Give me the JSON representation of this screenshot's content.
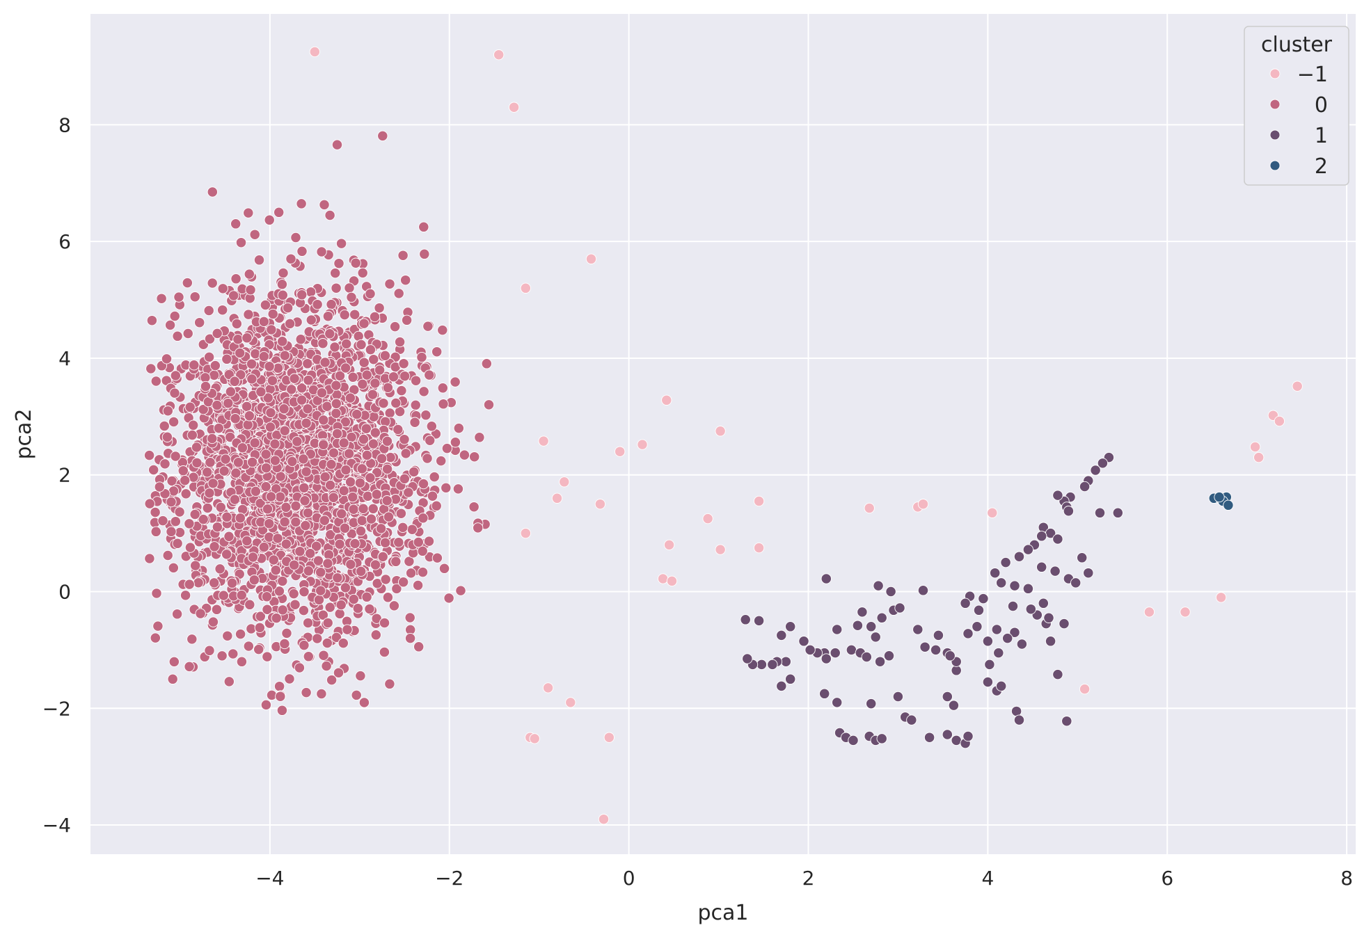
{
  "chart_data": {
    "type": "scatter",
    "title": "",
    "xlabel": "pca1",
    "ylabel": "pca2",
    "xlim": [
      -6.0,
      8.1
    ],
    "ylim": [
      -4.5,
      9.9
    ],
    "xticks": [
      -4,
      -2,
      0,
      2,
      4,
      6,
      8
    ],
    "xtick_labels": [
      "−4",
      "−2",
      "0",
      "2",
      "4",
      "6",
      "8"
    ],
    "yticks": [
      -4,
      -2,
      0,
      2,
      4,
      6,
      8
    ],
    "ytick_labels": [
      "−4",
      "−2",
      "0",
      "2",
      "4",
      "6",
      "8"
    ],
    "grid": true,
    "background": "#eaeaf2",
    "legend": {
      "title": "cluster",
      "placement": "top-right",
      "entries": [
        {
          "label": "−1",
          "color": "#f4b7c1"
        },
        {
          "label": "0",
          "color": "#c06680"
        },
        {
          "label": "1",
          "color": "#6a4e6f"
        },
        {
          "label": "2",
          "color": "#315b80"
        }
      ]
    },
    "series": [
      {
        "name": "−1",
        "color": "#f4b7c1",
        "points": [
          [
            -3.5,
            9.25
          ],
          [
            -1.45,
            9.2
          ],
          [
            -1.28,
            8.3
          ],
          [
            -0.42,
            5.7
          ],
          [
            -1.15,
            5.2
          ],
          [
            0.42,
            3.28
          ],
          [
            1.02,
            2.75
          ],
          [
            0.15,
            2.52
          ],
          [
            -0.1,
            2.4
          ],
          [
            -0.95,
            2.58
          ],
          [
            -0.72,
            1.88
          ],
          [
            -0.8,
            1.6
          ],
          [
            -0.32,
            1.5
          ],
          [
            0.88,
            1.25
          ],
          [
            1.45,
            1.55
          ],
          [
            2.68,
            1.43
          ],
          [
            3.22,
            1.45
          ],
          [
            3.28,
            1.5
          ],
          [
            4.05,
            1.35
          ],
          [
            0.45,
            0.8
          ],
          [
            1.02,
            0.72
          ],
          [
            1.45,
            0.75
          ],
          [
            -1.15,
            1.0
          ],
          [
            0.38,
            0.22
          ],
          [
            0.48,
            0.18
          ],
          [
            -1.1,
            -2.5
          ],
          [
            -1.05,
            -2.52
          ],
          [
            -0.9,
            -1.65
          ],
          [
            -0.65,
            -1.9
          ],
          [
            -0.22,
            -2.5
          ],
          [
            -0.28,
            -3.9
          ],
          [
            5.8,
            -0.35
          ],
          [
            6.2,
            -0.35
          ],
          [
            6.6,
            -0.1
          ],
          [
            5.08,
            -1.67
          ],
          [
            7.45,
            3.52
          ],
          [
            7.18,
            3.02
          ],
          [
            7.25,
            2.92
          ],
          [
            6.98,
            2.48
          ],
          [
            7.02,
            2.3
          ]
        ]
      },
      {
        "name": "0",
        "color": "#c06680",
        "points": []
      },
      {
        "name": "1",
        "color": "#6a4e6f",
        "points": [
          [
            5.35,
            2.3
          ],
          [
            5.28,
            2.2
          ],
          [
            5.2,
            2.08
          ],
          [
            5.12,
            1.9
          ],
          [
            5.08,
            1.8
          ],
          [
            4.92,
            1.62
          ],
          [
            4.85,
            1.55
          ],
          [
            4.78,
            1.65
          ],
          [
            4.88,
            1.45
          ],
          [
            4.9,
            1.38
          ],
          [
            5.25,
            1.35
          ],
          [
            5.45,
            1.35
          ],
          [
            4.62,
            1.1
          ],
          [
            4.7,
            1.0
          ],
          [
            4.78,
            0.9
          ],
          [
            4.6,
            0.95
          ],
          [
            4.52,
            0.8
          ],
          [
            4.45,
            0.72
          ],
          [
            4.35,
            0.6
          ],
          [
            4.2,
            0.5
          ],
          [
            4.08,
            0.32
          ],
          [
            4.15,
            0.15
          ],
          [
            4.3,
            0.1
          ],
          [
            4.45,
            0.05
          ],
          [
            4.6,
            0.42
          ],
          [
            4.75,
            0.35
          ],
          [
            4.9,
            0.22
          ],
          [
            5.05,
            0.58
          ],
          [
            5.12,
            0.32
          ],
          [
            4.98,
            0.15
          ],
          [
            4.62,
            -0.2
          ],
          [
            4.55,
            -0.4
          ],
          [
            4.65,
            -0.55
          ],
          [
            4.85,
            -0.55
          ],
          [
            4.3,
            -0.7
          ],
          [
            4.22,
            -0.8
          ],
          [
            4.1,
            -0.65
          ],
          [
            4.0,
            -0.85
          ],
          [
            3.88,
            -0.6
          ],
          [
            3.78,
            -0.72
          ],
          [
            3.95,
            -0.12
          ],
          [
            3.9,
            -0.32
          ],
          [
            4.12,
            -1.05
          ],
          [
            4.02,
            -1.25
          ],
          [
            3.65,
            -1.35
          ],
          [
            4.0,
            -1.55
          ],
          [
            4.1,
            -1.7
          ],
          [
            4.15,
            -1.62
          ],
          [
            3.55,
            -1.8
          ],
          [
            3.62,
            -1.95
          ],
          [
            3.42,
            -1.0
          ],
          [
            3.55,
            -1.05
          ],
          [
            3.65,
            -1.2
          ],
          [
            3.3,
            -0.95
          ],
          [
            3.22,
            -0.65
          ],
          [
            3.08,
            -2.15
          ],
          [
            3.15,
            -2.2
          ],
          [
            3.35,
            -2.5
          ],
          [
            3.55,
            -2.45
          ],
          [
            3.65,
            -2.55
          ],
          [
            3.75,
            -2.6
          ],
          [
            3.78,
            -2.48
          ],
          [
            4.32,
            -2.05
          ],
          [
            4.35,
            -2.2
          ],
          [
            4.78,
            -1.42
          ],
          [
            4.88,
            -2.22
          ],
          [
            4.7,
            -0.85
          ],
          [
            3.28,
            0.02
          ],
          [
            2.92,
            0.0
          ],
          [
            2.78,
            0.1
          ],
          [
            2.6,
            -0.35
          ],
          [
            2.82,
            -0.45
          ],
          [
            2.95,
            -0.32
          ],
          [
            3.02,
            -0.28
          ],
          [
            2.7,
            -0.6
          ],
          [
            2.75,
            -0.78
          ],
          [
            2.55,
            -0.58
          ],
          [
            2.48,
            -1.0
          ],
          [
            2.58,
            -1.05
          ],
          [
            2.65,
            -1.12
          ],
          [
            2.8,
            -1.2
          ],
          [
            2.9,
            -1.1
          ],
          [
            2.32,
            -0.65
          ],
          [
            2.18,
            -1.05
          ],
          [
            2.1,
            -1.05
          ],
          [
            2.02,
            -1.0
          ],
          [
            2.2,
            -1.15
          ],
          [
            2.3,
            -1.05
          ],
          [
            1.95,
            -0.85
          ],
          [
            1.8,
            -0.6
          ],
          [
            1.75,
            -1.2
          ],
          [
            1.7,
            -0.75
          ],
          [
            1.65,
            -1.2
          ],
          [
            1.6,
            -1.25
          ],
          [
            1.48,
            -1.25
          ],
          [
            1.38,
            -1.25
          ],
          [
            1.32,
            -1.15
          ],
          [
            1.3,
            -0.48
          ],
          [
            1.45,
            -0.5
          ],
          [
            1.7,
            -1.62
          ],
          [
            1.8,
            -1.5
          ],
          [
            2.18,
            -1.75
          ],
          [
            2.32,
            -1.9
          ],
          [
            2.35,
            -2.42
          ],
          [
            2.42,
            -2.5
          ],
          [
            2.5,
            -2.55
          ],
          [
            2.68,
            -2.48
          ],
          [
            2.75,
            -2.55
          ],
          [
            2.82,
            -2.52
          ],
          [
            3.0,
            -1.8
          ],
          [
            2.7,
            -1.92
          ],
          [
            2.2,
            0.22
          ],
          [
            3.8,
            -0.08
          ],
          [
            3.75,
            -0.2
          ],
          [
            3.45,
            -0.75
          ],
          [
            3.58,
            -1.1
          ],
          [
            4.48,
            -0.3
          ],
          [
            4.68,
            -0.45
          ],
          [
            4.28,
            -0.25
          ],
          [
            4.38,
            -0.9
          ]
        ]
      },
      {
        "name": "2",
        "color": "#315b80",
        "points": [
          [
            6.52,
            1.6
          ],
          [
            6.6,
            1.58
          ],
          [
            6.66,
            1.62
          ],
          [
            6.62,
            1.55
          ],
          [
            6.68,
            1.48
          ],
          [
            6.58,
            1.62
          ]
        ]
      }
    ],
    "dense_clusters": [
      {
        "series": "0",
        "center": [
          -3.6,
          2.2
        ],
        "spread": [
          0.72,
          2.6
        ],
        "x_range": [
          -5.35,
          -1.2
        ],
        "y_range": [
          -3.75,
          8.7
        ],
        "count": 2600
      }
    ]
  }
}
